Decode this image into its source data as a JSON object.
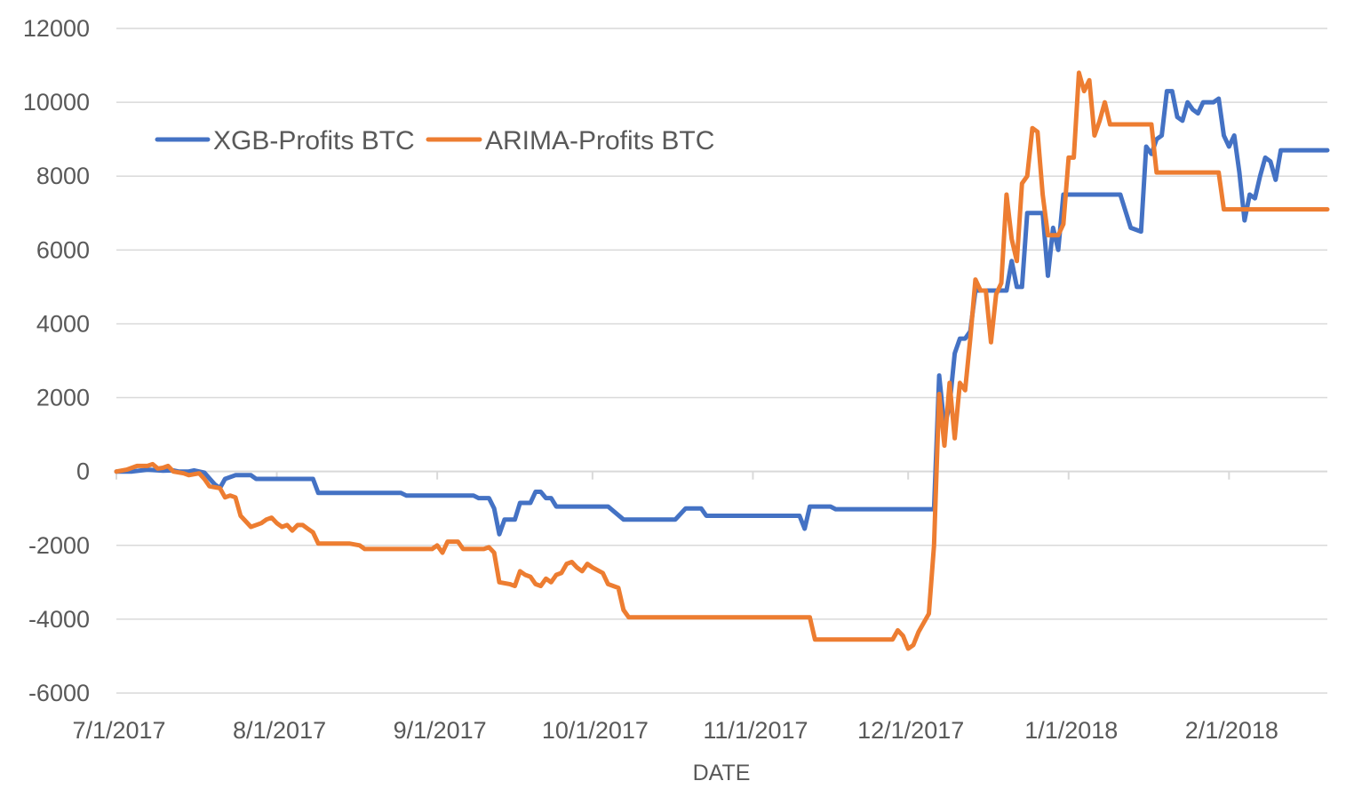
{
  "chart_data": {
    "type": "line",
    "title": "",
    "xlabel": "DATE",
    "ylabel": "",
    "ylim": [
      -6000,
      12000
    ],
    "yticks": [
      "12000",
      "10000",
      "8000",
      "6000",
      "4000",
      "2000",
      "0",
      "-2000",
      "-4000",
      "-6000"
    ],
    "xticks": [
      "7/1/2017",
      "8/1/2017",
      "9/1/2017",
      "10/1/2017",
      "11/1/2017",
      "12/1/2017",
      "1/1/2018",
      "2/1/2018"
    ],
    "x_range": [
      "2017-07-01",
      "2018-02-20"
    ],
    "grid": true,
    "legend_position": "top-left",
    "series": [
      {
        "name": "XGB-Profits BTC",
        "color": "#4472C4",
        "points": [
          [
            "2017-07-01",
            0
          ],
          [
            "2017-07-04",
            0
          ],
          [
            "2017-07-07",
            50
          ],
          [
            "2017-07-10",
            20
          ],
          [
            "2017-07-12",
            30
          ],
          [
            "2017-07-13",
            0
          ],
          [
            "2017-07-15",
            0
          ],
          [
            "2017-07-16",
            30
          ],
          [
            "2017-07-18",
            -30
          ],
          [
            "2017-07-20",
            -350
          ],
          [
            "2017-07-21",
            -450
          ],
          [
            "2017-07-22",
            -200
          ],
          [
            "2017-07-24",
            -100
          ],
          [
            "2017-07-27",
            -100
          ],
          [
            "2017-07-28",
            -200
          ],
          [
            "2017-08-04",
            -200
          ],
          [
            "2017-08-05",
            -200
          ],
          [
            "2017-08-07",
            -200
          ],
          [
            "2017-08-08",
            -200
          ],
          [
            "2017-08-09",
            -580
          ],
          [
            "2017-08-25",
            -580
          ],
          [
            "2017-08-26",
            -650
          ],
          [
            "2017-09-08",
            -650
          ],
          [
            "2017-09-09",
            -720
          ],
          [
            "2017-09-11",
            -720
          ],
          [
            "2017-09-12",
            -1000
          ],
          [
            "2017-09-13",
            -1700
          ],
          [
            "2017-09-14",
            -1300
          ],
          [
            "2017-09-16",
            -1300
          ],
          [
            "2017-09-17",
            -850
          ],
          [
            "2017-09-19",
            -850
          ],
          [
            "2017-09-20",
            -550
          ],
          [
            "2017-09-21",
            -550
          ],
          [
            "2017-09-22",
            -720
          ],
          [
            "2017-09-23",
            -720
          ],
          [
            "2017-09-24",
            -950
          ],
          [
            "2017-10-04",
            -950
          ],
          [
            "2017-10-07",
            -1300
          ],
          [
            "2017-10-17",
            -1300
          ],
          [
            "2017-10-19",
            -1000
          ],
          [
            "2017-10-22",
            -1000
          ],
          [
            "2017-10-23",
            -1200
          ],
          [
            "2017-11-10",
            -1200
          ],
          [
            "2017-11-11",
            -1550
          ],
          [
            "2017-11-12",
            -950
          ],
          [
            "2017-11-16",
            -950
          ],
          [
            "2017-11-17",
            -1020
          ],
          [
            "2017-12-06",
            -1020
          ],
          [
            "2017-12-07",
            2600
          ],
          [
            "2017-12-08",
            1200
          ],
          [
            "2017-12-09",
            1800
          ],
          [
            "2017-12-10",
            3200
          ],
          [
            "2017-12-11",
            3600
          ],
          [
            "2017-12-12",
            3600
          ],
          [
            "2017-12-13",
            3800
          ],
          [
            "2017-12-14",
            4900
          ],
          [
            "2017-12-20",
            4900
          ],
          [
            "2017-12-21",
            5700
          ],
          [
            "2017-12-22",
            5000
          ],
          [
            "2017-12-23",
            5000
          ],
          [
            "2017-12-24",
            7000
          ],
          [
            "2017-12-27",
            7000
          ],
          [
            "2017-12-28",
            5300
          ],
          [
            "2017-12-29",
            6600
          ],
          [
            "2017-12-30",
            6000
          ],
          [
            "2017-12-31",
            7500
          ],
          [
            "2018-01-10",
            7500
          ],
          [
            "2018-01-11",
            7500
          ],
          [
            "2018-01-13",
            6600
          ],
          [
            "2018-01-15",
            6500
          ],
          [
            "2018-01-16",
            8800
          ],
          [
            "2018-01-17",
            8600
          ],
          [
            "2018-01-18",
            9000
          ],
          [
            "2018-01-19",
            9100
          ],
          [
            "2018-01-20",
            10300
          ],
          [
            "2018-01-21",
            10300
          ],
          [
            "2018-01-22",
            9600
          ],
          [
            "2018-01-23",
            9500
          ],
          [
            "2018-01-24",
            10000
          ],
          [
            "2018-01-25",
            9800
          ],
          [
            "2018-01-26",
            9700
          ],
          [
            "2018-01-27",
            10000
          ],
          [
            "2018-01-29",
            10000
          ],
          [
            "2018-01-30",
            10100
          ],
          [
            "2018-01-31",
            9100
          ],
          [
            "2018-02-01",
            8800
          ],
          [
            "2018-02-02",
            9100
          ],
          [
            "2018-02-03",
            8100
          ],
          [
            "2018-02-04",
            6800
          ],
          [
            "2018-02-05",
            7500
          ],
          [
            "2018-02-06",
            7400
          ],
          [
            "2018-02-07",
            8000
          ],
          [
            "2018-02-08",
            8500
          ],
          [
            "2018-02-09",
            8400
          ],
          [
            "2018-02-10",
            7900
          ],
          [
            "2018-02-11",
            8700
          ],
          [
            "2018-02-20",
            8700
          ]
        ]
      },
      {
        "name": "ARIMA-Profits BTC",
        "color": "#ED7D31",
        "points": [
          [
            "2017-07-01",
            0
          ],
          [
            "2017-07-03",
            50
          ],
          [
            "2017-07-05",
            150
          ],
          [
            "2017-07-07",
            150
          ],
          [
            "2017-07-08",
            200
          ],
          [
            "2017-07-09",
            80
          ],
          [
            "2017-07-10",
            100
          ],
          [
            "2017-07-11",
            150
          ],
          [
            "2017-07-12",
            0
          ],
          [
            "2017-07-14",
            -50
          ],
          [
            "2017-07-15",
            -100
          ],
          [
            "2017-07-17",
            -50
          ],
          [
            "2017-07-18",
            -200
          ],
          [
            "2017-07-19",
            -400
          ],
          [
            "2017-07-21",
            -450
          ],
          [
            "2017-07-22",
            -700
          ],
          [
            "2017-07-23",
            -650
          ],
          [
            "2017-07-24",
            -700
          ],
          [
            "2017-07-25",
            -1200
          ],
          [
            "2017-07-27",
            -1500
          ],
          [
            "2017-07-29",
            -1400
          ],
          [
            "2017-07-30",
            -1300
          ],
          [
            "2017-07-31",
            -1250
          ],
          [
            "2017-08-01",
            -1400
          ],
          [
            "2017-08-02",
            -1500
          ],
          [
            "2017-08-03",
            -1450
          ],
          [
            "2017-08-04",
            -1600
          ],
          [
            "2017-08-05",
            -1450
          ],
          [
            "2017-08-06",
            -1450
          ],
          [
            "2017-08-07",
            -1550
          ],
          [
            "2017-08-08",
            -1650
          ],
          [
            "2017-08-09",
            -1950
          ],
          [
            "2017-08-15",
            -1950
          ],
          [
            "2017-08-17",
            -2000
          ],
          [
            "2017-08-18",
            -2100
          ],
          [
            "2017-08-31",
            -2100
          ],
          [
            "2017-09-01",
            -2000
          ],
          [
            "2017-09-02",
            -2200
          ],
          [
            "2017-09-03",
            -1900
          ],
          [
            "2017-09-05",
            -1900
          ],
          [
            "2017-09-06",
            -2100
          ],
          [
            "2017-09-10",
            -2100
          ],
          [
            "2017-09-11",
            -2050
          ],
          [
            "2017-09-12",
            -2200
          ],
          [
            "2017-09-13",
            -3000
          ],
          [
            "2017-09-15",
            -3050
          ],
          [
            "2017-09-16",
            -3100
          ],
          [
            "2017-09-17",
            -2700
          ],
          [
            "2017-09-18",
            -2800
          ],
          [
            "2017-09-19",
            -2850
          ],
          [
            "2017-09-20",
            -3050
          ],
          [
            "2017-09-21",
            -3100
          ],
          [
            "2017-09-22",
            -2900
          ],
          [
            "2017-09-23",
            -3000
          ],
          [
            "2017-09-24",
            -2800
          ],
          [
            "2017-09-25",
            -2750
          ],
          [
            "2017-09-26",
            -2500
          ],
          [
            "2017-09-27",
            -2450
          ],
          [
            "2017-09-28",
            -2600
          ],
          [
            "2017-09-29",
            -2700
          ],
          [
            "2017-09-30",
            -2500
          ],
          [
            "2017-10-01",
            -2600
          ],
          [
            "2017-10-03",
            -2750
          ],
          [
            "2017-10-04",
            -3050
          ],
          [
            "2017-10-06",
            -3150
          ],
          [
            "2017-10-07",
            -3750
          ],
          [
            "2017-10-08",
            -3950
          ],
          [
            "2017-11-12",
            -3950
          ],
          [
            "2017-11-13",
            -4550
          ],
          [
            "2017-11-28",
            -4550
          ],
          [
            "2017-11-29",
            -4300
          ],
          [
            "2017-11-30",
            -4450
          ],
          [
            "2017-12-01",
            -4800
          ],
          [
            "2017-12-02",
            -4700
          ],
          [
            "2017-12-03",
            -4350
          ],
          [
            "2017-12-05",
            -3850
          ],
          [
            "2017-12-06",
            -2000
          ],
          [
            "2017-12-07",
            2100
          ],
          [
            "2017-12-08",
            700
          ],
          [
            "2017-12-09",
            2400
          ],
          [
            "2017-12-10",
            900
          ],
          [
            "2017-12-11",
            2400
          ],
          [
            "2017-12-12",
            2200
          ],
          [
            "2017-12-13",
            3600
          ],
          [
            "2017-12-14",
            5200
          ],
          [
            "2017-12-15",
            4900
          ],
          [
            "2017-12-16",
            4900
          ],
          [
            "2017-12-17",
            3500
          ],
          [
            "2017-12-18",
            4800
          ],
          [
            "2017-12-19",
            5100
          ],
          [
            "2017-12-20",
            7500
          ],
          [
            "2017-12-21",
            6300
          ],
          [
            "2017-12-22",
            5700
          ],
          [
            "2017-12-23",
            7800
          ],
          [
            "2017-12-24",
            8000
          ],
          [
            "2017-12-25",
            9300
          ],
          [
            "2017-12-26",
            9200
          ],
          [
            "2017-12-27",
            7500
          ],
          [
            "2017-12-28",
            6400
          ],
          [
            "2017-12-29",
            6400
          ],
          [
            "2017-12-30",
            6400
          ],
          [
            "2017-12-31",
            6700
          ],
          [
            "2018-01-01",
            8500
          ],
          [
            "2018-01-02",
            8500
          ],
          [
            "2018-01-03",
            10800
          ],
          [
            "2018-01-04",
            10300
          ],
          [
            "2018-01-05",
            10600
          ],
          [
            "2018-01-06",
            9100
          ],
          [
            "2018-01-07",
            9500
          ],
          [
            "2018-01-08",
            10000
          ],
          [
            "2018-01-09",
            9400
          ],
          [
            "2018-01-17",
            9400
          ],
          [
            "2018-01-18",
            8100
          ],
          [
            "2018-01-30",
            8100
          ],
          [
            "2018-01-31",
            7100
          ],
          [
            "2018-02-20",
            7100
          ]
        ]
      }
    ]
  }
}
